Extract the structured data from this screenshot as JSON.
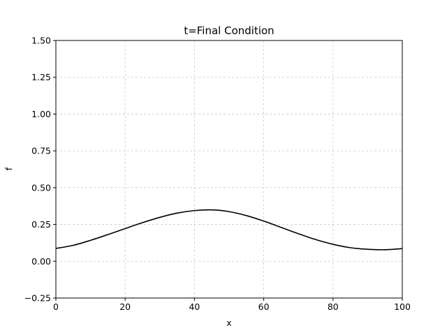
{
  "chart_data": {
    "type": "line",
    "title": "t=Final Condition",
    "xlabel": "x",
    "ylabel": "f",
    "xlim": [
      0,
      100
    ],
    "ylim": [
      -0.25,
      1.5
    ],
    "xticks": [
      0,
      20,
      40,
      60,
      80,
      100
    ],
    "xtick_labels": [
      "0",
      "20",
      "40",
      "60",
      "80",
      "100"
    ],
    "yticks": [
      -0.25,
      0,
      0.25,
      0.5,
      0.75,
      1.0,
      1.25,
      1.5
    ],
    "ytick_labels": [
      "−0.25",
      "0.00",
      "0.25",
      "0.50",
      "0.75",
      "1.00",
      "1.25",
      "1.50"
    ],
    "grid": true,
    "line_color": "#000000",
    "series": [
      {
        "x": [
          0,
          5,
          10,
          15,
          20,
          25,
          30,
          35,
          40,
          45,
          50,
          55,
          60,
          65,
          70,
          75,
          80,
          85,
          90,
          95,
          100
        ],
        "y": [
          0.087,
          0.108,
          0.142,
          0.181,
          0.222,
          0.262,
          0.298,
          0.327,
          0.344,
          0.349,
          0.337,
          0.31,
          0.273,
          0.23,
          0.187,
          0.147,
          0.115,
          0.092,
          0.081,
          0.078,
          0.086
        ]
      }
    ]
  }
}
